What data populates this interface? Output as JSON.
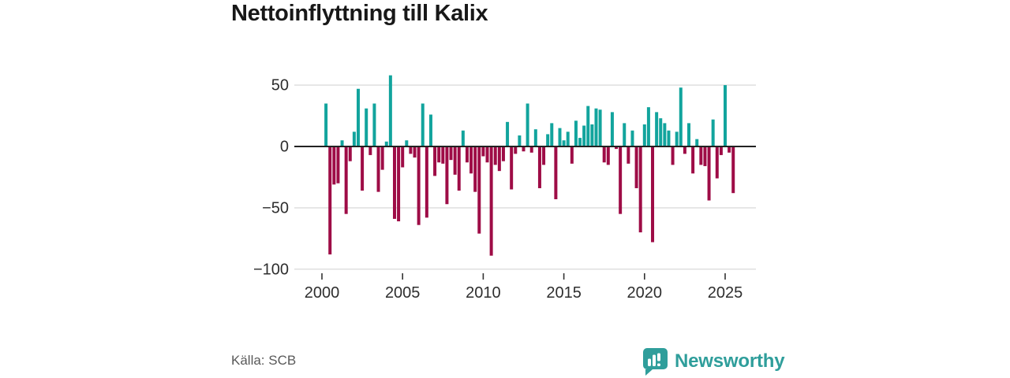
{
  "title": "Nettoinflyttning till Kalix",
  "source": "Källa: SCB",
  "branding": {
    "name": "Newsworthy",
    "color": "#2f9e9b",
    "icon": "speech-bubble-bar-chart-icon"
  },
  "colors": {
    "positive_bar": "#12a49d",
    "negative_bar": "#9e0c46",
    "zero_line": "#222222",
    "gridline": "#dcdcdc",
    "axis_text": "#2e2e2e",
    "background": "#ffffff"
  },
  "chart_data": {
    "type": "bar",
    "title": "Nettoinflyttning till Kalix",
    "xlabel": "",
    "ylabel": "",
    "frequency": "quarterly",
    "start_period": "2000Q1",
    "end_period": "2025Q3",
    "ylim": [
      -100,
      60
    ],
    "grid": true,
    "legend": false,
    "x_tick_labels": [
      "2000",
      "2005",
      "2010",
      "2015",
      "2020",
      "2025"
    ],
    "x_tick_years": [
      2000,
      2005,
      2010,
      2015,
      2020,
      2025
    ],
    "y_tick_labels": [
      "50",
      "0",
      "−50",
      "−100"
    ],
    "y_ticks": [
      50,
      0,
      -50,
      -100
    ],
    "series": [
      {
        "name": "Nettoinflyttning",
        "values": [
          0,
          35,
          -88,
          -31,
          -30,
          5,
          -55,
          -12,
          12,
          47,
          -36,
          31,
          -7,
          35,
          -37,
          -19,
          4,
          58,
          -59,
          -61,
          -17,
          5,
          -6,
          -9,
          -64,
          35,
          -58,
          26,
          -24,
          -13,
          -14,
          -47,
          -11,
          -23,
          -36,
          13,
          -13,
          -22,
          -37,
          -71,
          -8,
          -13,
          -89,
          -15,
          -20,
          -12,
          20,
          -35,
          -6,
          9,
          -4,
          35,
          -5,
          14,
          -34,
          -15,
          10,
          19,
          -43,
          15,
          5,
          12,
          -14,
          21,
          7,
          17,
          33,
          18,
          31,
          30,
          -13,
          -15,
          28,
          -2,
          -55,
          19,
          -14,
          13,
          -34,
          -70,
          18,
          32,
          -78,
          28,
          23,
          19,
          13,
          -15,
          12,
          48,
          -6,
          19,
          -22,
          6,
          -15,
          -16,
          -44,
          22,
          -26,
          -7,
          50,
          -5,
          -38
        ]
      }
    ]
  }
}
